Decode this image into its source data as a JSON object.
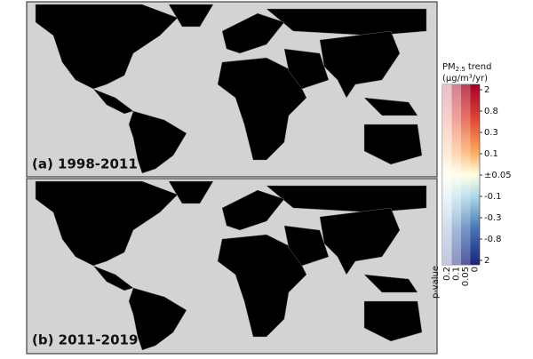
{
  "panels": [
    {
      "label": "(a) 1998-2011"
    },
    {
      "label": "(b) 2011-2019"
    }
  ],
  "colorbar": {
    "title": "PM",
    "title_sub": "2.5",
    "title_rest": "trend",
    "units": "(μg/m³/yr)",
    "trend_ticks": [
      "2",
      "0.8",
      "0.3",
      "0.1",
      "±0.05",
      "-0.1",
      "-0.3",
      "-0.8",
      "2"
    ],
    "pvalue_title": "p-value",
    "pvalue_ticks": [
      "0.2",
      "0.1",
      "0.05",
      "0"
    ]
  }
}
